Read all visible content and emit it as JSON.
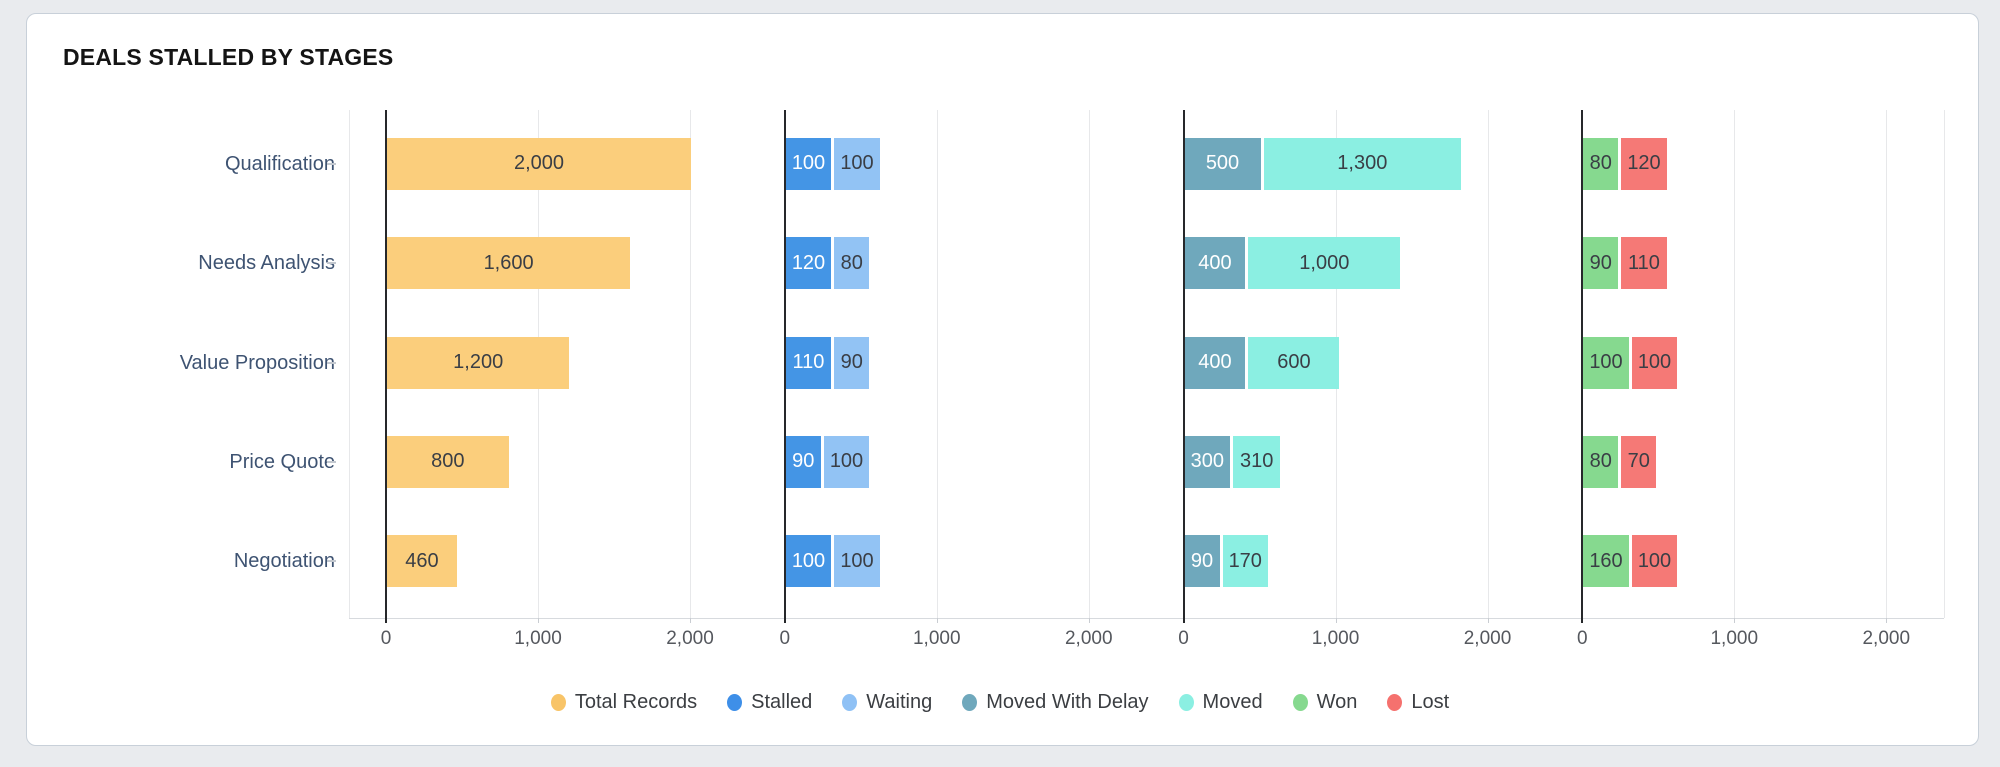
{
  "title": "DEALS STALLED BY STAGES",
  "chart_data": {
    "type": "bar",
    "orientation": "horizontal",
    "title": "DEALS STALLED BY STAGES",
    "categories": [
      "Qualification",
      "Needs Analysis",
      "Value Proposition",
      "Price Quote",
      "Negotiation"
    ],
    "x_axis": {
      "ticks": [
        0,
        1000,
        2000
      ],
      "tick_labels": [
        "0",
        "1,000",
        "2,000"
      ],
      "range": [
        -250,
        2380
      ],
      "grid": true
    },
    "legend_position": "bottom",
    "panels": [
      {
        "name": "total-records",
        "series": [
          {
            "name": "Total Records",
            "color": "#FBCE7C",
            "label_color": "#3a3e45",
            "values": [
              2000,
              1600,
              1200,
              800,
              460
            ],
            "labels": [
              "2,000",
              "1,600",
              "1,200",
              "800",
              "460"
            ]
          }
        ]
      },
      {
        "name": "stalled-waiting",
        "series": [
          {
            "name": "Stalled",
            "color": "#4495E5",
            "label_color": "#ffffff",
            "values": [
              100,
              120,
              110,
              90,
              100
            ],
            "labels": [
              "100",
              "120",
              "110",
              "90",
              "100"
            ]
          },
          {
            "name": "Waiting",
            "color": "#92C3F4",
            "label_color": "#3a3e45",
            "values": [
              100,
              80,
              90,
              100,
              100
            ],
            "labels": [
              "100",
              "80",
              "90",
              "100",
              "100"
            ]
          }
        ]
      },
      {
        "name": "moved-group",
        "series": [
          {
            "name": "Moved With Delay",
            "color": "#6FA8BC",
            "label_color": "#ffffff",
            "values": [
              500,
              400,
              400,
              300,
              90
            ],
            "labels": [
              "500",
              "400",
              "400",
              "300",
              "90"
            ]
          },
          {
            "name": "Moved",
            "color": "#8BEFE2",
            "label_color": "#3a3e45",
            "values": [
              1300,
              1000,
              600,
              310,
              170
            ],
            "labels": [
              "1,300",
              "1,000",
              "600",
              "310",
              "170"
            ]
          }
        ]
      },
      {
        "name": "won-lost",
        "series": [
          {
            "name": "Won",
            "color": "#86D98F",
            "label_color": "#3a3e45",
            "values": [
              80,
              90,
              100,
              80,
              160
            ],
            "labels": [
              "80",
              "90",
              "100",
              "80",
              "160"
            ]
          },
          {
            "name": "Lost",
            "color": "#F57976",
            "label_color": "#3a3e45",
            "values": [
              120,
              110,
              100,
              70,
              100
            ],
            "labels": [
              "120",
              "110",
              "100",
              "70",
              "100"
            ]
          }
        ]
      }
    ],
    "legend": [
      {
        "label": "Total Records",
        "color": "#F8C468"
      },
      {
        "label": "Stalled",
        "color": "#3E8FE8"
      },
      {
        "label": "Waiting",
        "color": "#8FC1F5"
      },
      {
        "label": "Moved With Delay",
        "color": "#6FA8BC"
      },
      {
        "label": "Moved",
        "color": "#8BEFE2"
      },
      {
        "label": "Won",
        "color": "#86D98F"
      },
      {
        "label": "Lost",
        "color": "#F5716E"
      }
    ]
  }
}
